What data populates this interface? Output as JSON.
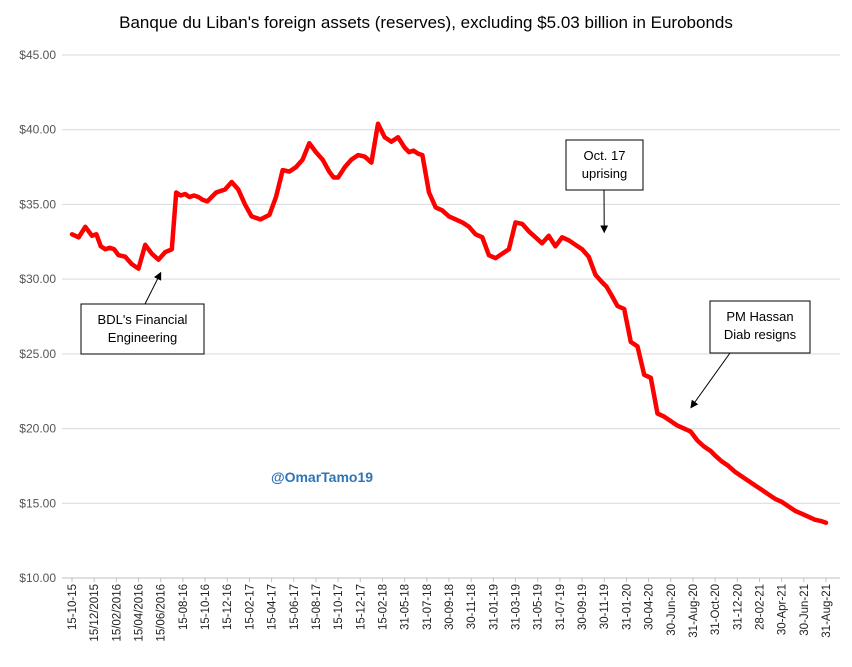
{
  "chart_data": {
    "type": "line",
    "title": "Banque du Liban's foreign assets (reserves), excluding $5.03 billion in Eurobonds",
    "xlabel": "",
    "ylabel": "",
    "ylim": [
      10,
      45
    ],
    "grid": true,
    "legend": "none",
    "y_ticks": [
      "$10.00",
      "$15.00",
      "$20.00",
      "$25.00",
      "$30.00",
      "$35.00",
      "$40.00",
      "$45.00"
    ],
    "x_ticks": [
      "15-10-15",
      "15/12/2015",
      "15/02/2016",
      "15/04/2016",
      "15/06/2016",
      "15-08-16",
      "15-10-16",
      "15-12-16",
      "15-02-17",
      "15-04-17",
      "15-06-17",
      "15-08-17",
      "15-10-17",
      "15-12-17",
      "15-02-18",
      "31-05-18",
      "31-07-18",
      "30-09-18",
      "30-11-18",
      "31-01-19",
      "31-03-19",
      "31-05-19",
      "31-07-19",
      "30-09-19",
      "30-11-19",
      "31-01-20",
      "30-04-20",
      "30-Jun-20",
      "31-Aug-20",
      "31-Oct-20",
      "31-12-20",
      "28-02-21",
      "30-Apr-21",
      "30-Jun-21",
      "31-Aug-21"
    ],
    "series": [
      {
        "color": "#ff0000",
        "x": [
          0,
          0.3,
          0.6,
          0.9,
          1.1,
          1.3,
          1.5,
          1.7,
          1.9,
          2.1,
          2.4,
          2.7,
          3.0,
          3.3,
          3.6,
          3.9,
          4.2,
          4.5,
          4.7,
          4.9,
          5.1,
          5.3,
          5.5,
          5.7,
          5.9,
          6.1,
          6.5,
          6.9,
          7.2,
          7.5,
          7.8,
          8.1,
          8.5,
          8.9,
          9.2,
          9.5,
          9.8,
          10.1,
          10.4,
          10.7,
          11.0,
          11.3,
          11.6,
          11.8,
          12.0,
          12.3,
          12.6,
          12.9,
          13.2,
          13.5,
          13.8,
          14.1,
          14.4,
          14.7,
          15.0,
          15.2,
          15.4,
          15.6,
          15.8,
          16.1,
          16.4,
          16.7,
          17.0,
          17.3,
          17.6,
          17.9,
          18.2,
          18.5,
          18.8,
          19.1,
          19.4,
          19.7,
          20.0,
          20.3,
          20.6,
          20.9,
          21.2,
          21.5,
          21.8,
          22.1,
          22.4,
          22.7,
          23.0,
          23.3,
          23.6,
          23.9,
          24.1,
          24.3,
          24.6,
          24.9,
          25.2,
          25.5,
          25.8,
          26.1,
          26.4,
          26.7,
          27.0,
          27.3,
          27.6,
          27.9,
          28.2,
          28.5,
          28.8,
          29.0,
          29.3,
          29.6,
          29.9,
          30.2,
          30.5,
          30.8,
          31.1,
          31.4,
          31.7,
          32.0,
          32.3,
          32.6,
          32.9,
          33.2,
          33.5,
          33.8,
          34.0
        ],
        "values": [
          33.0,
          32.8,
          33.5,
          32.9,
          33.0,
          32.2,
          32.0,
          32.1,
          32.0,
          31.6,
          31.5,
          31.0,
          30.7,
          32.3,
          31.7,
          31.3,
          31.8,
          32.0,
          35.8,
          35.6,
          35.7,
          35.5,
          35.6,
          35.5,
          35.3,
          35.2,
          35.8,
          36.0,
          36.5,
          36.0,
          35.0,
          34.2,
          34.0,
          34.3,
          35.5,
          37.3,
          37.2,
          37.5,
          38.0,
          39.1,
          38.5,
          38.0,
          37.2,
          36.8,
          36.8,
          37.5,
          38.0,
          38.3,
          38.2,
          37.8,
          40.4,
          39.5,
          39.2,
          39.5,
          38.8,
          38.5,
          38.6,
          38.4,
          38.3,
          35.8,
          34.8,
          34.6,
          34.2,
          34.0,
          33.8,
          33.5,
          33.0,
          32.8,
          31.6,
          31.4,
          31.7,
          32.0,
          33.8,
          33.7,
          33.2,
          32.8,
          32.4,
          32.9,
          32.2,
          32.8,
          32.6,
          32.3,
          32.0,
          31.5,
          30.3,
          29.8,
          29.5,
          29.0,
          28.2,
          28.0,
          25.8,
          25.5,
          23.6,
          23.4,
          21.0,
          20.8,
          20.5,
          20.2,
          20.0,
          19.8,
          19.2,
          18.8,
          18.5,
          18.2,
          17.8,
          17.5,
          17.1,
          16.8,
          16.5,
          16.2,
          15.9,
          15.6,
          15.3,
          15.1,
          14.8,
          14.5,
          14.3,
          14.1,
          13.9,
          13.8,
          13.7
        ]
      }
    ],
    "annotations": [
      {
        "lines": [
          "BDL's Financial",
          "Engineering"
        ],
        "points_to": "15/06/2016",
        "value": 30.7
      },
      {
        "lines": [
          "Oct. 17",
          "uprising"
        ],
        "points_to": "30-11-19",
        "value": 32.8
      },
      {
        "lines": [
          "PM Hassan",
          "Diab resigns"
        ],
        "points_to": "31-Aug-20",
        "value": 21.0
      }
    ],
    "watermark": "@OmarTamo19"
  }
}
